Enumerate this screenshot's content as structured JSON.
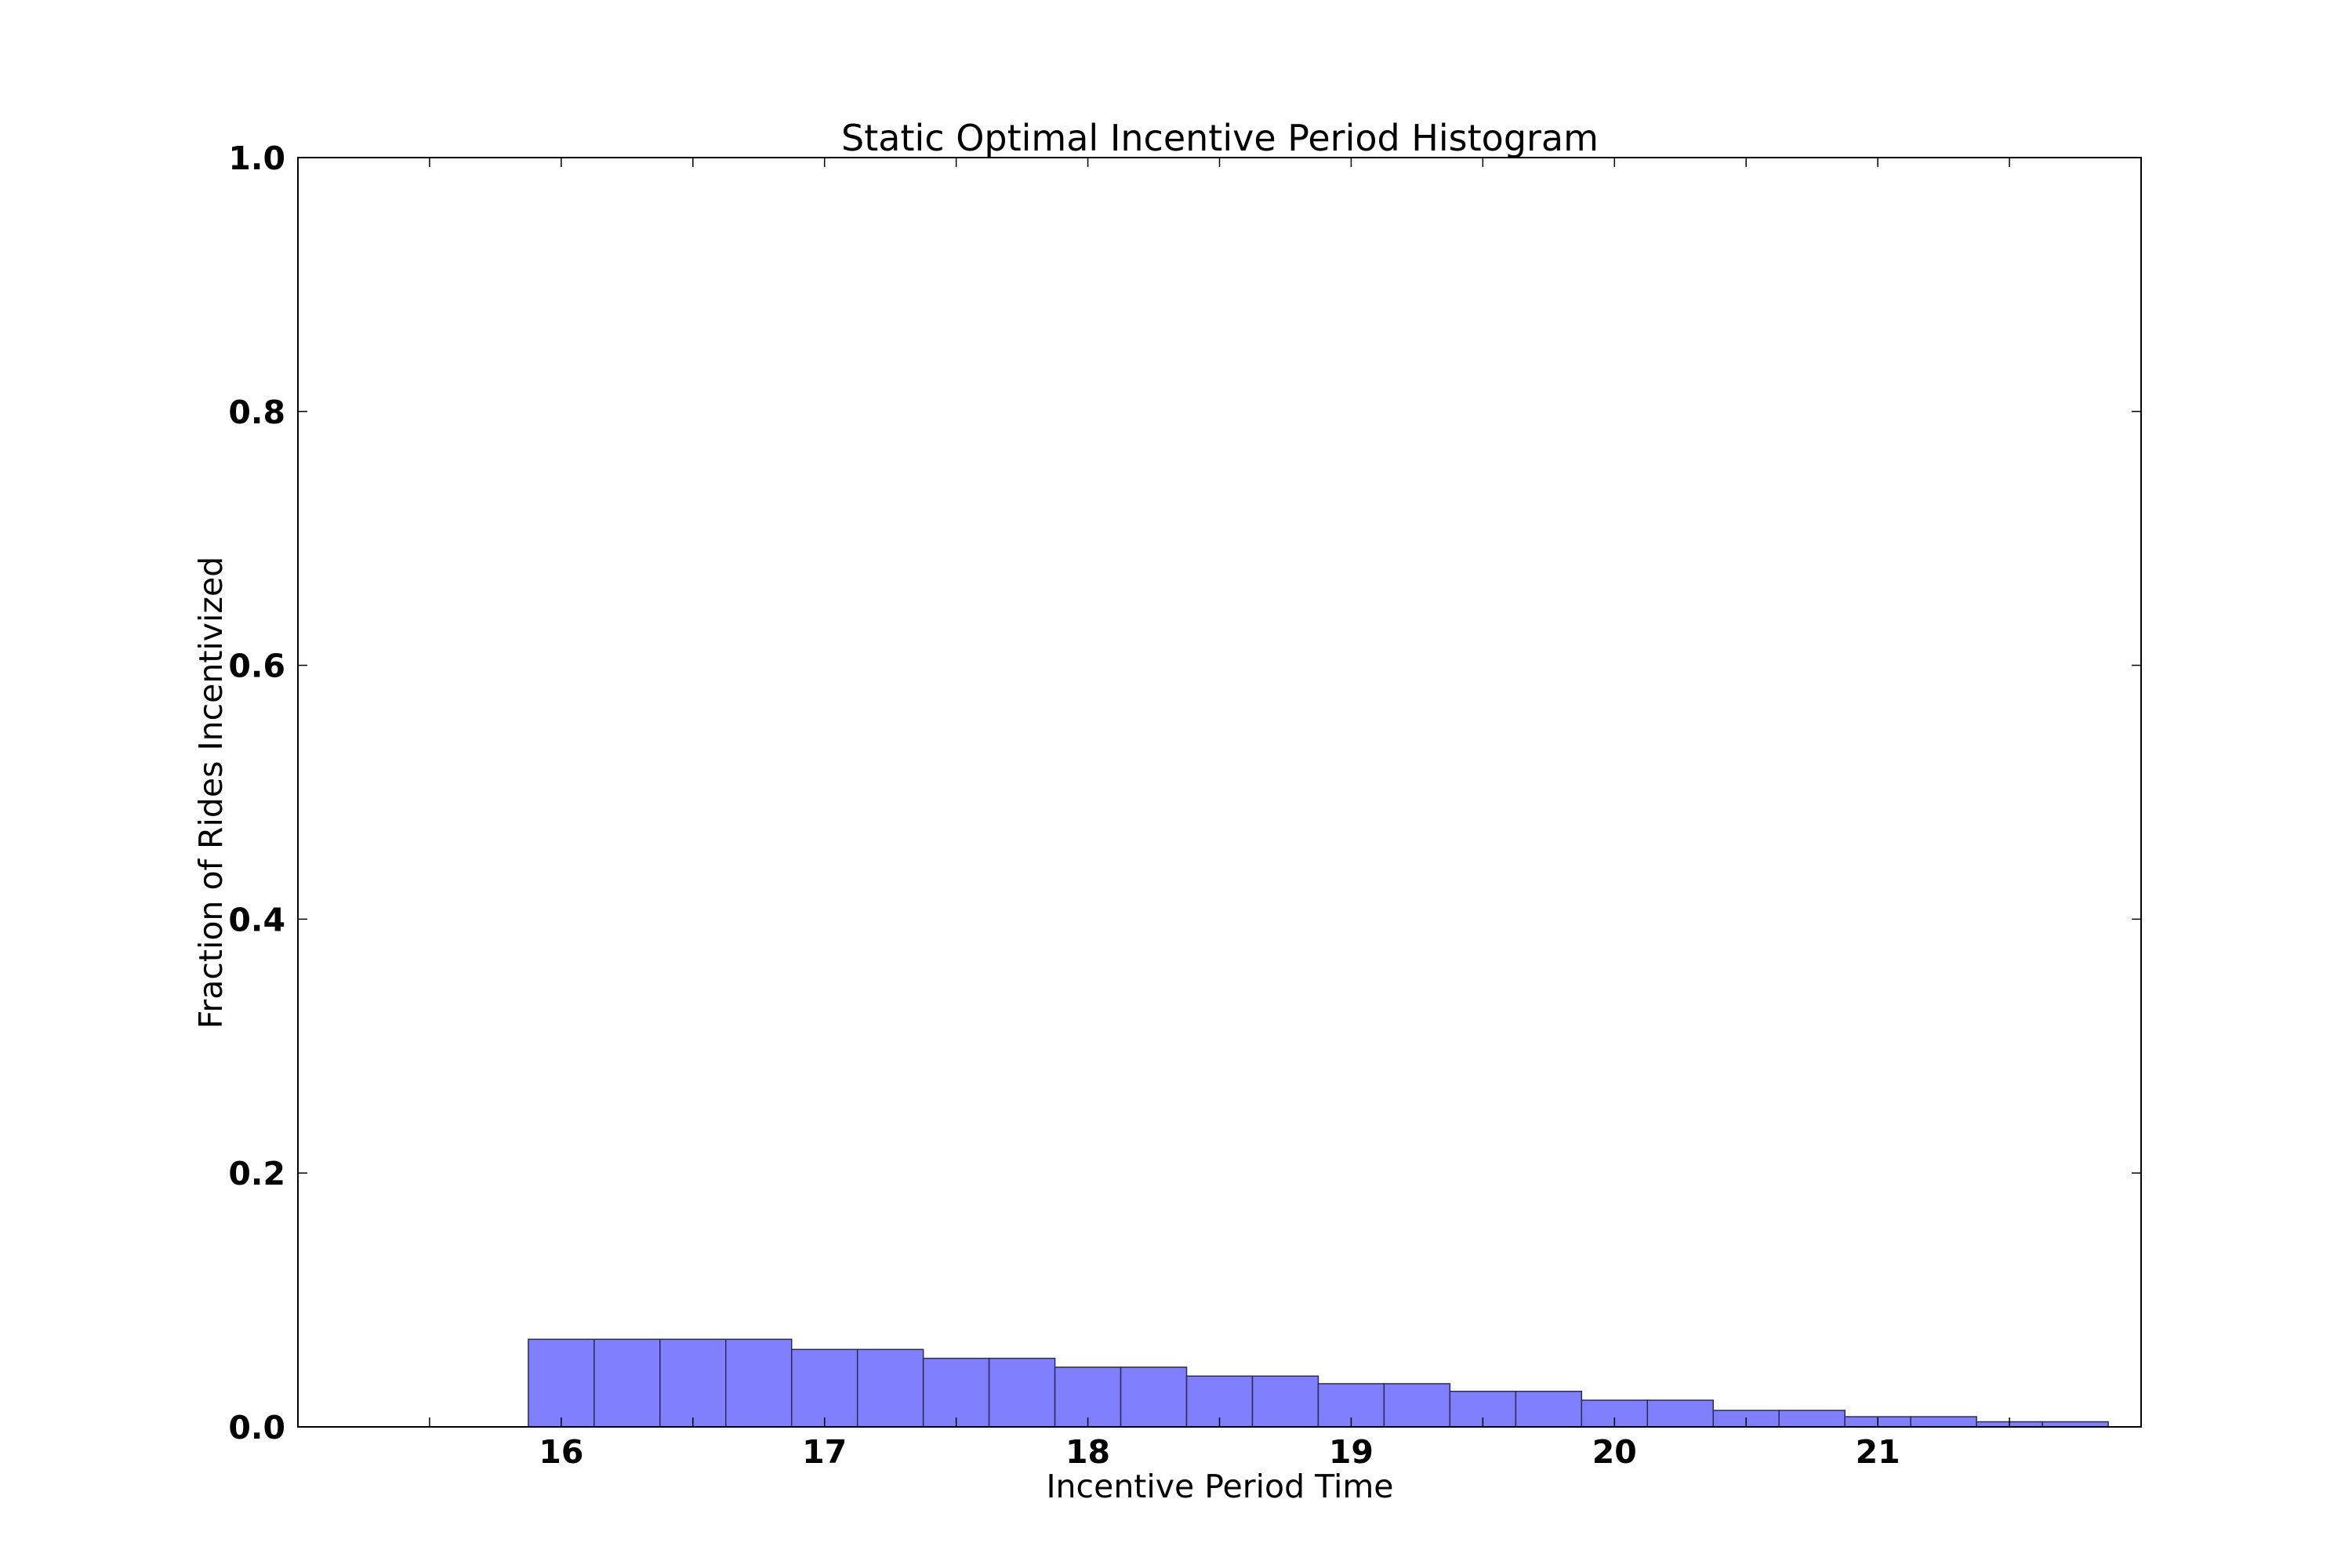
{
  "chart_data": {
    "type": "bar",
    "title": "Static Optimal Incentive Period Histogram",
    "xlabel": "Incentive Period Time",
    "ylabel": "Fraction of Rides Incentivized",
    "xlim": [
      15.0,
      22.0
    ],
    "ylim": [
      0.0,
      1.0
    ],
    "xticks": [
      16,
      17,
      18,
      19,
      20,
      21
    ],
    "xtick_labels": [
      "16",
      "17",
      "18",
      "19",
      "20",
      "21"
    ],
    "yticks": [
      0.0,
      0.2,
      0.4,
      0.6,
      0.8,
      1.0
    ],
    "ytick_labels": [
      "0.0",
      "0.2",
      "0.4",
      "0.6",
      "0.8",
      "1.0"
    ],
    "bar_color": "#8080ff",
    "edge_color": "#2a2a55",
    "grid": false,
    "bins": [
      {
        "x0": 15.875,
        "x1": 16.125,
        "value": 0.069
      },
      {
        "x0": 16.125,
        "x1": 16.375,
        "value": 0.069
      },
      {
        "x0": 16.375,
        "x1": 16.625,
        "value": 0.069
      },
      {
        "x0": 16.625,
        "x1": 16.875,
        "value": 0.069
      },
      {
        "x0": 16.875,
        "x1": 17.125,
        "value": 0.061
      },
      {
        "x0": 17.125,
        "x1": 17.375,
        "value": 0.061
      },
      {
        "x0": 17.375,
        "x1": 17.625,
        "value": 0.054
      },
      {
        "x0": 17.625,
        "x1": 17.875,
        "value": 0.054
      },
      {
        "x0": 17.875,
        "x1": 18.125,
        "value": 0.047
      },
      {
        "x0": 18.125,
        "x1": 18.375,
        "value": 0.047
      },
      {
        "x0": 18.375,
        "x1": 18.625,
        "value": 0.04
      },
      {
        "x0": 18.625,
        "x1": 18.875,
        "value": 0.04
      },
      {
        "x0": 18.875,
        "x1": 19.125,
        "value": 0.034
      },
      {
        "x0": 19.125,
        "x1": 19.375,
        "value": 0.034
      },
      {
        "x0": 19.375,
        "x1": 19.625,
        "value": 0.028
      },
      {
        "x0": 19.625,
        "x1": 19.875,
        "value": 0.028
      },
      {
        "x0": 19.875,
        "x1": 20.125,
        "value": 0.021
      },
      {
        "x0": 20.125,
        "x1": 20.375,
        "value": 0.021
      },
      {
        "x0": 20.375,
        "x1": 20.625,
        "value": 0.013
      },
      {
        "x0": 20.625,
        "x1": 20.875,
        "value": 0.013
      },
      {
        "x0": 20.875,
        "x1": 21.125,
        "value": 0.008
      },
      {
        "x0": 21.125,
        "x1": 21.375,
        "value": 0.008
      },
      {
        "x0": 21.375,
        "x1": 21.625,
        "value": 0.004
      },
      {
        "x0": 21.625,
        "x1": 21.875,
        "value": 0.004
      }
    ]
  }
}
